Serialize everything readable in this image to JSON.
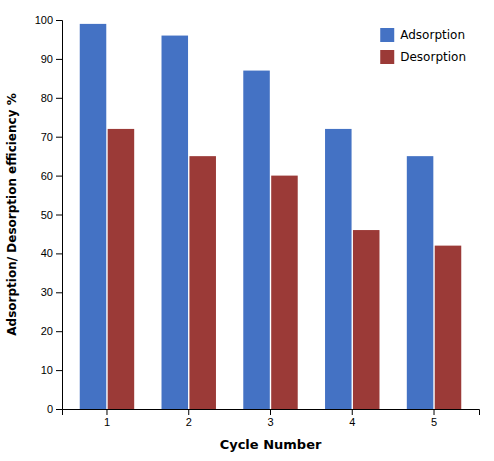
{
  "chart_data": {
    "type": "bar",
    "categories": [
      "1",
      "2",
      "3",
      "4",
      "5"
    ],
    "series": [
      {
        "name": "Adsorption",
        "color": "#4472C4",
        "values": [
          99,
          96,
          87,
          72,
          65
        ]
      },
      {
        "name": "Desorption",
        "color": "#9B3A37",
        "values": [
          72,
          65,
          60,
          46,
          42
        ]
      }
    ],
    "xlabel": "Cycle Number",
    "ylabel": "Adsorption/ Desorption efficiency %",
    "ylim": [
      0,
      100
    ],
    "yticks": [
      0,
      10,
      20,
      30,
      40,
      50,
      60,
      70,
      80,
      90,
      100
    ],
    "legend": "upper right",
    "grid": false
  }
}
